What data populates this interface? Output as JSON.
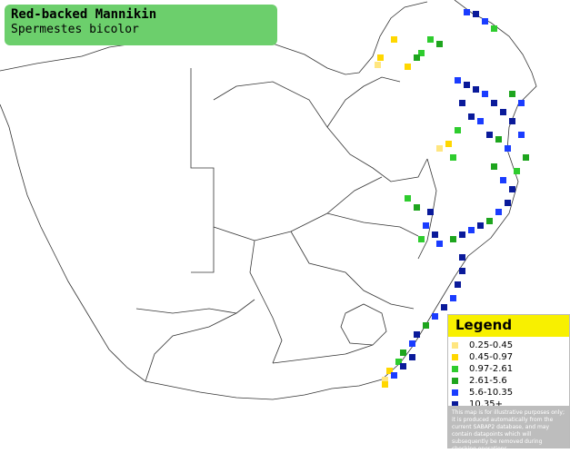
{
  "title": {
    "common_name": "Red-backed Mannikin",
    "scientific_name": "Spermestes bicolor"
  },
  "legend": {
    "heading": "Legend",
    "classes": [
      {
        "label": "0.25-0.45",
        "color": "#ffe680"
      },
      {
        "label": "0.45-0.97",
        "color": "#ffd700"
      },
      {
        "label": "0.97-2.61",
        "color": "#2ecc2e"
      },
      {
        "label": "2.61-5.6",
        "color": "#1ea51e"
      },
      {
        "label": "5.6-10.35",
        "color": "#1a3cff"
      },
      {
        "label": "10.35+",
        "color": "#0a1a9a"
      }
    ],
    "disclaimer": "This map is for illustrative purposes only; it is produced automatically from the current SABAP2 database, and may contain datapoints which will subsequently be removed during checking operations."
  }
}
